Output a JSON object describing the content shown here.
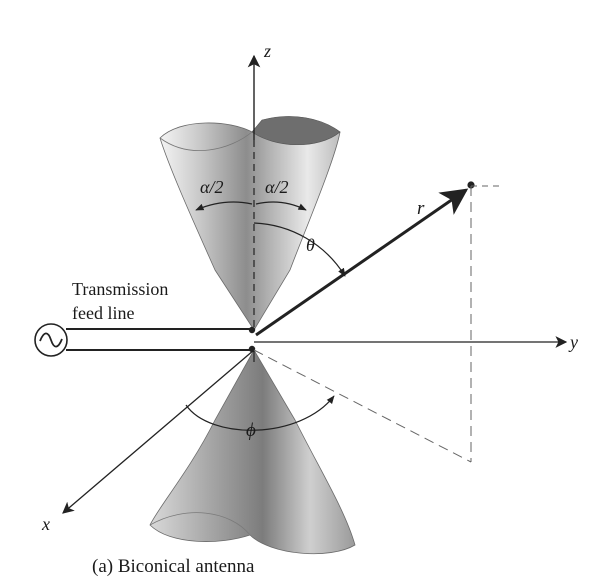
{
  "labels": {
    "z_axis": "z",
    "y_axis": "y",
    "x_axis": "x",
    "radius": "r",
    "theta": "θ",
    "phi": "ϕ",
    "half_angle_left": "α/2",
    "half_angle_right": "α/2",
    "feed_line_1": "Transmission",
    "feed_line_2": "feed line",
    "source_symbol": "~"
  },
  "caption": "(a) Biconical antenna"
}
